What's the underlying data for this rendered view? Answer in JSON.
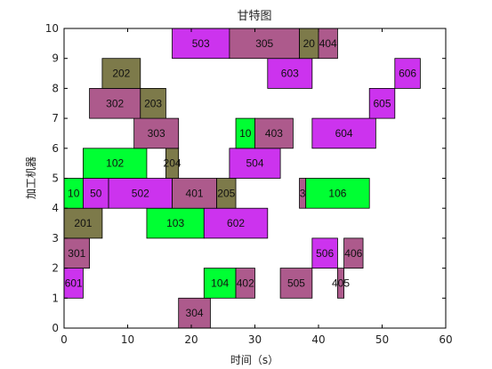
{
  "chart_data": {
    "type": "gantt",
    "title": "甘特图",
    "xlabel": "时间（s）",
    "ylabel": "加工机器",
    "xlim": [
      0,
      60
    ],
    "ylim": [
      0,
      10
    ],
    "xticks": [
      0,
      10,
      20,
      30,
      40,
      50,
      60
    ],
    "yticks": [
      0,
      1,
      2,
      3,
      4,
      5,
      6,
      7,
      8,
      9,
      10
    ],
    "grid": false,
    "colors": {
      "magenta": "#cc33ee",
      "green": "#00ff33",
      "olive": "#7d7a4a",
      "rose": "#ad5a8c",
      "frame": "#000000"
    },
    "tasks": [
      {
        "label": "304",
        "start": 18,
        "end": 23,
        "row": 0,
        "color": "rose"
      },
      {
        "label": "601",
        "start": 0,
        "end": 3,
        "row": 1,
        "color": "magenta"
      },
      {
        "label": "104",
        "start": 22,
        "end": 27,
        "row": 1,
        "color": "green"
      },
      {
        "label": "402",
        "start": 27,
        "end": 30,
        "row": 1,
        "color": "rose"
      },
      {
        "label": "505",
        "start": 34,
        "end": 39,
        "row": 1,
        "color": "rose"
      },
      {
        "label": "405",
        "start": 43,
        "end": 44,
        "row": 1,
        "color": "rose"
      },
      {
        "label": "301",
        "start": 0,
        "end": 4,
        "row": 2,
        "color": "rose"
      },
      {
        "label": "506",
        "start": 39,
        "end": 43,
        "row": 2,
        "color": "magenta"
      },
      {
        "label": "406",
        "start": 44,
        "end": 47,
        "row": 2,
        "color": "rose"
      },
      {
        "label": "201",
        "start": 0,
        "end": 6,
        "row": 3,
        "color": "olive"
      },
      {
        "label": "103",
        "start": 13,
        "end": 22,
        "row": 3,
        "color": "green"
      },
      {
        "label": "602",
        "start": 22,
        "end": 32,
        "row": 3,
        "color": "magenta"
      },
      {
        "label": "10",
        "start": 0,
        "end": 3,
        "row": 4,
        "color": "green"
      },
      {
        "label": "50",
        "start": 3,
        "end": 7,
        "row": 4,
        "color": "magenta"
      },
      {
        "label": "502",
        "start": 7,
        "end": 17,
        "row": 4,
        "color": "magenta"
      },
      {
        "label": "401",
        "start": 17,
        "end": 24,
        "row": 4,
        "color": "rose"
      },
      {
        "label": "205",
        "start": 24,
        "end": 27,
        "row": 4,
        "color": "olive"
      },
      {
        "label": "3",
        "start": 37,
        "end": 38,
        "row": 4,
        "color": "rose"
      },
      {
        "label": "106",
        "start": 38,
        "end": 48,
        "row": 4,
        "color": "green"
      },
      {
        "label": "102",
        "start": 3,
        "end": 13,
        "row": 5,
        "color": "green"
      },
      {
        "label": "204",
        "start": 16,
        "end": 18,
        "row": 5,
        "color": "olive"
      },
      {
        "label": "504",
        "start": 26,
        "end": 34,
        "row": 5,
        "color": "magenta"
      },
      {
        "label": "303",
        "start": 11,
        "end": 18,
        "row": 6,
        "color": "rose"
      },
      {
        "label": "10",
        "start": 27,
        "end": 30,
        "row": 6,
        "color": "green"
      },
      {
        "label": "403",
        "start": 30,
        "end": 36,
        "row": 6,
        "color": "rose"
      },
      {
        "label": "604",
        "start": 39,
        "end": 49,
        "row": 6,
        "color": "magenta"
      },
      {
        "label": "302",
        "start": 4,
        "end": 12,
        "row": 7,
        "color": "rose"
      },
      {
        "label": "203",
        "start": 12,
        "end": 16,
        "row": 7,
        "color": "olive"
      },
      {
        "label": "605",
        "start": 48,
        "end": 52,
        "row": 7,
        "color": "magenta"
      },
      {
        "label": "202",
        "start": 6,
        "end": 12,
        "row": 8,
        "color": "olive"
      },
      {
        "label": "603",
        "start": 32,
        "end": 39,
        "row": 8,
        "color": "magenta"
      },
      {
        "label": "606",
        "start": 52,
        "end": 56,
        "row": 8,
        "color": "magenta"
      },
      {
        "label": "503",
        "start": 17,
        "end": 26,
        "row": 9,
        "color": "magenta"
      },
      {
        "label": "305",
        "start": 26,
        "end": 37,
        "row": 9,
        "color": "rose"
      },
      {
        "label": "20",
        "start": 37,
        "end": 40,
        "row": 9,
        "color": "olive"
      },
      {
        "label": "404",
        "start": 40,
        "end": 43,
        "row": 9,
        "color": "rose"
      }
    ]
  }
}
